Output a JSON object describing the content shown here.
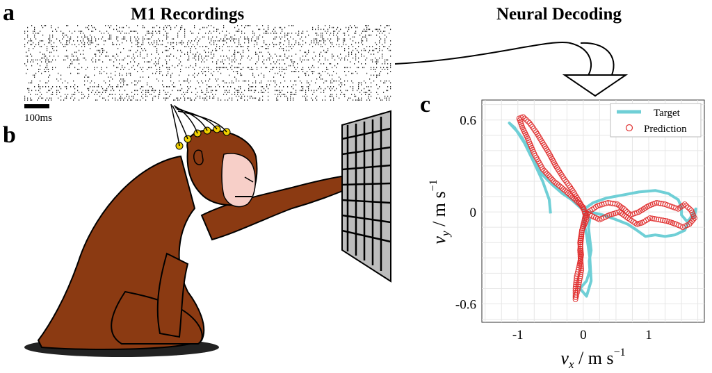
{
  "panels": {
    "a": {
      "label": "a",
      "title": "M1 Recordings",
      "scale_bar": "100ms"
    },
    "b": {
      "label": "b"
    },
    "c": {
      "label": "c"
    },
    "decoding": {
      "title": "Neural Decoding"
    }
  },
  "chart_data": {
    "type": "line",
    "xlabel_main": "v",
    "xlabel_sub": "x",
    "xlabel_unit": " / m s",
    "xlabel_exp": "−1",
    "ylabel_main": "v",
    "ylabel_sub": "y",
    "ylabel_unit": " / m s",
    "ylabel_exp": "−1",
    "xlim": [
      -1.55,
      1.85
    ],
    "ylim": [
      -0.72,
      0.73
    ],
    "xticks": [
      -1,
      0,
      1
    ],
    "xtick_labels": [
      "-1",
      "0",
      "1"
    ],
    "yticks": [
      -0.6,
      0,
      0.6
    ],
    "ytick_labels": [
      "-0.6",
      "0",
      "0.6"
    ],
    "grid": true,
    "legend_position": "top-right",
    "colors": {
      "target": "#6fcfd6",
      "prediction": "#e03030"
    },
    "series": [
      {
        "name": "Target",
        "style": "line",
        "x": [
          -0.5,
          -0.52,
          -0.62,
          -0.75,
          -0.9,
          -1.05,
          -1.13,
          -1.0,
          -0.93,
          -0.85,
          -0.78,
          -0.64,
          -0.48,
          -0.32,
          -0.18,
          -0.05,
          0.05,
          0.1,
          0.08,
          0.1,
          0.12,
          0.09,
          0.1,
          0.05,
          -0.05,
          0.05,
          0.12,
          0.1,
          0.05,
          0.0,
          0.02,
          0.05,
          0.15,
          0.35,
          0.6,
          0.85,
          1.1,
          1.3,
          1.45,
          1.5,
          1.5,
          1.58,
          1.7,
          1.72,
          1.62,
          1.55,
          1.4,
          1.25,
          1.1,
          0.95,
          0.82,
          0.68,
          0.5,
          0.3,
          0.1,
          0.0
        ],
        "y": [
          -0.01,
          0.08,
          0.2,
          0.32,
          0.45,
          0.55,
          0.58,
          0.52,
          0.48,
          0.42,
          0.35,
          0.25,
          0.18,
          0.12,
          0.08,
          0.03,
          0.0,
          -0.05,
          -0.1,
          -0.18,
          -0.25,
          -0.32,
          -0.38,
          -0.45,
          -0.5,
          -0.55,
          -0.45,
          -0.3,
          -0.15,
          -0.05,
          0.0,
          0.03,
          0.06,
          0.09,
          0.11,
          0.13,
          0.14,
          0.12,
          0.08,
          0.03,
          -0.02,
          -0.06,
          -0.03,
          0.02,
          -0.05,
          -0.12,
          -0.15,
          -0.16,
          -0.15,
          -0.16,
          -0.12,
          -0.08,
          -0.05,
          -0.02,
          0.0,
          0.0
        ]
      },
      {
        "name": "Prediction",
        "style": "markers",
        "x": [
          0.0,
          -0.08,
          -0.18,
          -0.3,
          -0.42,
          -0.52,
          -0.62,
          -0.72,
          -0.82,
          -0.92,
          -0.98,
          -0.93,
          -0.85,
          -0.75,
          -0.62,
          -0.45,
          -0.28,
          -0.12,
          0.0,
          0.05,
          -0.02,
          -0.05,
          -0.03,
          -0.06,
          -0.1,
          -0.12,
          -0.12,
          -0.08,
          -0.03,
          -0.05,
          -0.02,
          0.03,
          0.08,
          0.22,
          0.38,
          0.52,
          0.62,
          0.72,
          0.85,
          1.0,
          1.12,
          1.25,
          1.38,
          1.45,
          1.55,
          1.65,
          1.7,
          1.62,
          1.52,
          1.42,
          1.28,
          1.15,
          1.02,
          0.9,
          0.82,
          0.68,
          0.55,
          0.4,
          0.25,
          0.1,
          0.0
        ],
        "y": [
          0.02,
          0.08,
          0.15,
          0.22,
          0.3,
          0.38,
          0.45,
          0.52,
          0.58,
          0.62,
          0.61,
          0.55,
          0.48,
          0.38,
          0.28,
          0.2,
          0.14,
          0.08,
          0.03,
          -0.05,
          -0.12,
          -0.2,
          -0.28,
          -0.35,
          -0.42,
          -0.5,
          -0.57,
          -0.5,
          -0.38,
          -0.25,
          -0.12,
          -0.03,
          0.0,
          0.04,
          0.06,
          0.05,
          0.02,
          -0.02,
          0.0,
          0.04,
          0.06,
          0.05,
          0.03,
          0.02,
          0.05,
          0.01,
          -0.04,
          -0.08,
          -0.1,
          -0.08,
          -0.06,
          -0.05,
          -0.04,
          -0.07,
          -0.08,
          -0.04,
          0.0,
          -0.02,
          -0.05,
          -0.02,
          0.0
        ]
      }
    ]
  }
}
